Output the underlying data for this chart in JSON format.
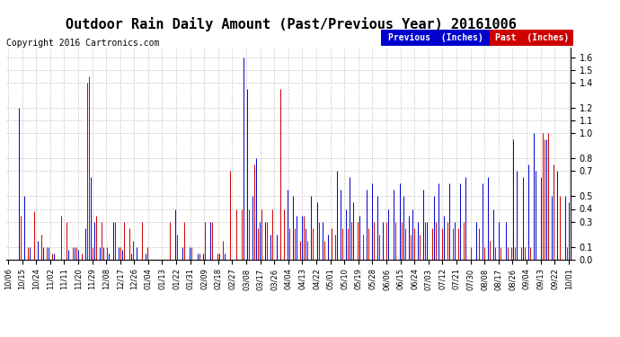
{
  "title": "Outdoor Rain Daily Amount (Past/Previous Year) 20161006",
  "copyright": "Copyright 2016 Cartronics.com",
  "yticks": [
    0.0,
    0.1,
    0.3,
    0.4,
    0.5,
    0.7,
    0.8,
    1.0,
    1.1,
    1.2,
    1.4,
    1.5,
    1.6
  ],
  "ylim": [
    0.0,
    1.68
  ],
  "background_color": "#ffffff",
  "grid_color": "#c8c8c8",
  "previous_color": "#0000cc",
  "past_color": "#cc0000",
  "black_color": "#000000",
  "legend_previous_bg": "#0000cc",
  "legend_past_bg": "#cc0000",
  "legend_text_color": "#ffffff",
  "x_labels": [
    "10/06",
    "10/15",
    "10/24",
    "11/02",
    "11/11",
    "11/20",
    "11/29",
    "12/08",
    "12/17",
    "12/26",
    "01/04",
    "01/13",
    "01/22",
    "01/31",
    "02/09",
    "02/18",
    "02/27",
    "03/08",
    "03/17",
    "03/26",
    "04/04",
    "04/13",
    "04/22",
    "05/01",
    "05/10",
    "05/19",
    "05/28",
    "06/06",
    "06/15",
    "06/24",
    "07/03",
    "07/12",
    "07/21",
    "07/30",
    "08/08",
    "08/17",
    "08/26",
    "09/04",
    "09/13",
    "09/22",
    "10/01"
  ],
  "title_fontsize": 11,
  "copyright_fontsize": 7,
  "tick_fontsize": 7,
  "legend_fontsize": 7
}
